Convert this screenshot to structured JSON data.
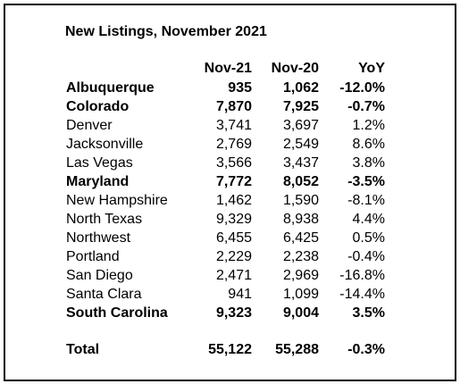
{
  "title": "New Listings, November 2021",
  "columns": [
    "Nov-21",
    "Nov-20",
    "YoY"
  ],
  "rows": [
    {
      "name": "Albuquerque",
      "nov21": "935",
      "nov20": "1,062",
      "yoy": "-12.0%",
      "bold": true
    },
    {
      "name": "Colorado",
      "nov21": "7,870",
      "nov20": "7,925",
      "yoy": "-0.7%",
      "bold": true
    },
    {
      "name": "Denver",
      "nov21": "3,741",
      "nov20": "3,697",
      "yoy": "1.2%",
      "bold": false
    },
    {
      "name": "Jacksonville",
      "nov21": "2,769",
      "nov20": "2,549",
      "yoy": "8.6%",
      "bold": false
    },
    {
      "name": "Las Vegas",
      "nov21": "3,566",
      "nov20": "3,437",
      "yoy": "3.8%",
      "bold": false
    },
    {
      "name": "Maryland",
      "nov21": "7,772",
      "nov20": "8,052",
      "yoy": "-3.5%",
      "bold": true
    },
    {
      "name": "New Hampshire",
      "nov21": "1,462",
      "nov20": "1,590",
      "yoy": "-8.1%",
      "bold": false
    },
    {
      "name": "North Texas",
      "nov21": "9,329",
      "nov20": "8,938",
      "yoy": "4.4%",
      "bold": false
    },
    {
      "name": "Northwest",
      "nov21": "6,455",
      "nov20": "6,425",
      "yoy": "0.5%",
      "bold": false
    },
    {
      "name": "Portland",
      "nov21": "2,229",
      "nov20": "2,238",
      "yoy": "-0.4%",
      "bold": false
    },
    {
      "name": "San Diego",
      "nov21": "2,471",
      "nov20": "2,969",
      "yoy": "-16.8%",
      "bold": false
    },
    {
      "name": "Santa Clara",
      "nov21": "941",
      "nov20": "1,099",
      "yoy": "-14.4%",
      "bold": false
    },
    {
      "name": "South Carolina",
      "nov21": "9,323",
      "nov20": "9,004",
      "yoy": "3.5%",
      "bold": true
    }
  ],
  "total": {
    "name": "Total",
    "nov21": "55,122",
    "nov20": "55,288",
    "yoy": "-0.3%"
  }
}
